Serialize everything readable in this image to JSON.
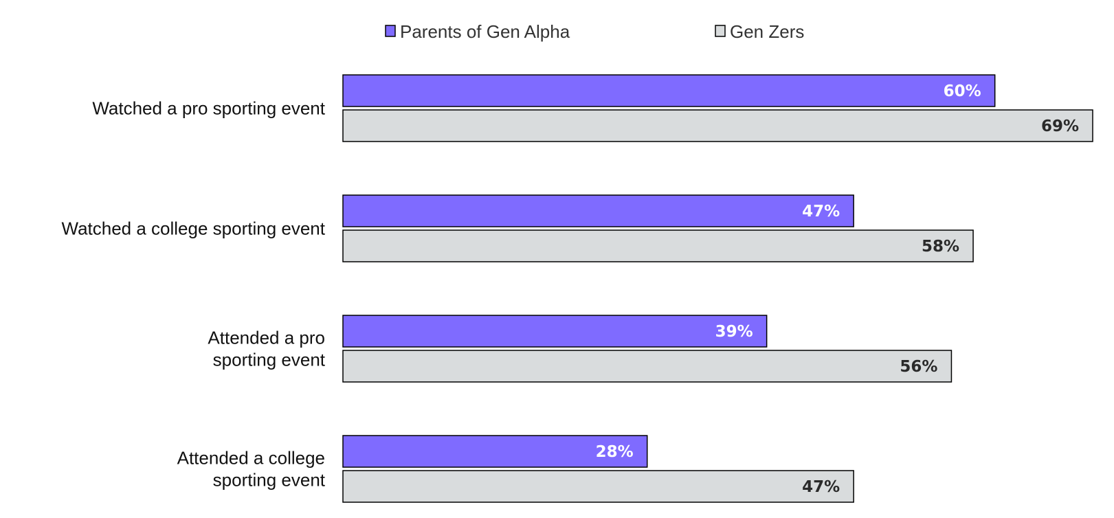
{
  "chart_data": {
    "type": "bar",
    "orientation": "horizontal",
    "categories": [
      [
        "Watched a pro sporting event"
      ],
      [
        "Watched a college sporting event"
      ],
      [
        "Attended a pro",
        "sporting event"
      ],
      [
        "Attended a college",
        "sporting event"
      ]
    ],
    "series": [
      {
        "name": "Parents of Gen Alpha",
        "values": [
          60,
          47,
          39,
          28
        ],
        "color": "#7f6bff",
        "label_color": "#ffffff"
      },
      {
        "name": "Gen Zers",
        "values": [
          69,
          58,
          56,
          47
        ],
        "color": "#d9dcdd",
        "label_color": "#2a2a2a"
      }
    ],
    "value_suffix": "%",
    "xlim": [
      0,
      69
    ],
    "legend_position": "top",
    "grid": false
  }
}
